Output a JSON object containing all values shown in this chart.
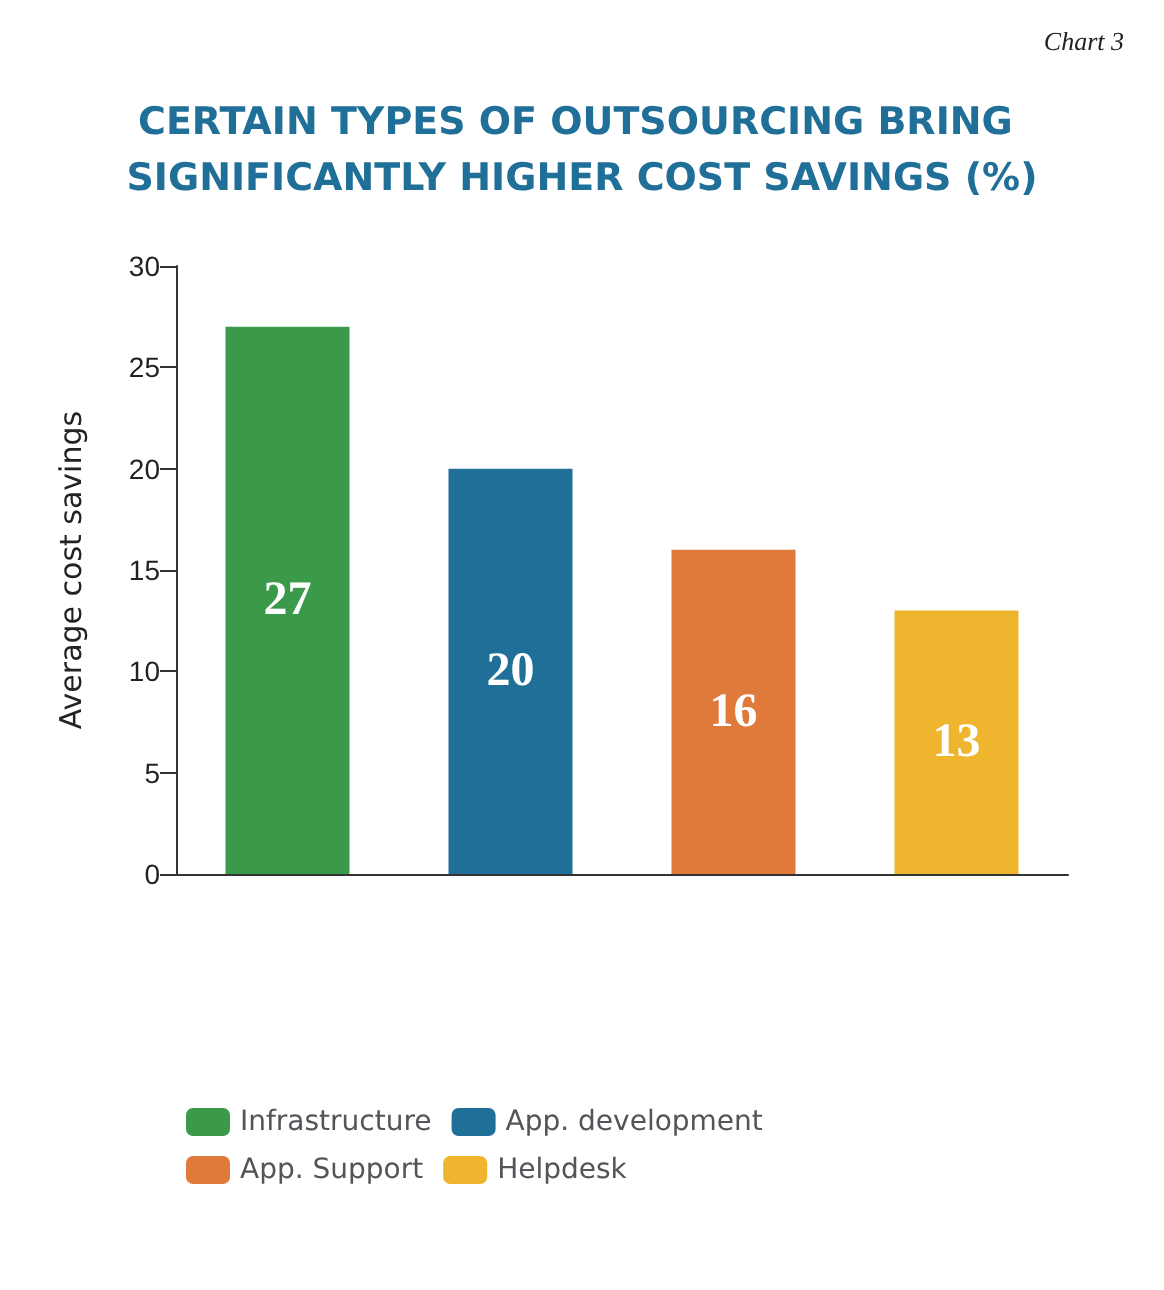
{
  "chart_data": {
    "type": "bar",
    "title": "CERTAIN TYPES OF OUTSOURCING BRING SIGNIFICANTLY HIGHER COST SAVINGS (%)",
    "ylabel": "Average cost savings",
    "annotations": [
      "Chart 3"
    ],
    "categories": [
      null,
      null,
      null,
      null
    ],
    "series": [
      {
        "name": "Infrastructure",
        "color": "#3a9a4a",
        "values": [
          27,
          null,
          null,
          null
        ]
      },
      {
        "name": "App. development",
        "color": "#1f6f98",
        "values": [
          null,
          20,
          null,
          null
        ]
      },
      {
        "name": "App. Support",
        "color": "#e07a3a",
        "values": [
          null,
          null,
          16,
          null
        ]
      },
      {
        "name": "Helpdesk",
        "color": "#efb52e",
        "values": [
          null,
          null,
          null,
          13
        ]
      }
    ],
    "ylim": [
      0,
      30
    ],
    "yticks": [
      0,
      5,
      10,
      15,
      20,
      25,
      30
    ],
    "grid": false,
    "legend": "bottom",
    "data_labels": true
  }
}
